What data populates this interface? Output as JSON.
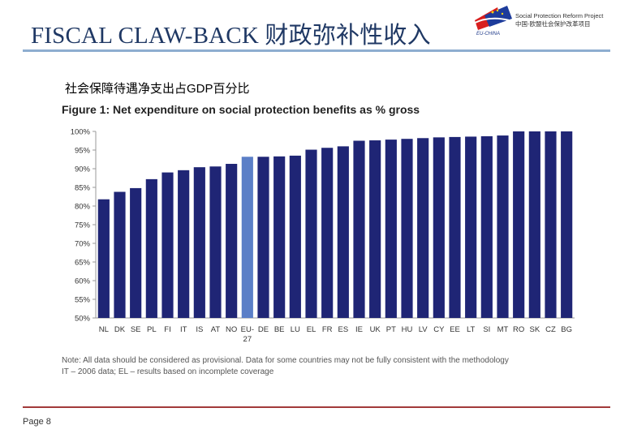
{
  "slide": {
    "title": "FISCAL CLAW-BACK 财政弥补性收入",
    "subtitle": "社会保障待遇净支出占GDP百分比",
    "page": "Page 8"
  },
  "logo": {
    "line1": "Social Protection Reform Project",
    "line2": "中国-欧盟社会保护改革项目",
    "sub": "EU-CHINA"
  },
  "figure": {
    "note_line1": "Note: All data should be considered as provisional. Data for some countries may not be fully consistent with the methodology",
    "note_line2": "IT – 2006 data; EL – results based on incomplete coverage"
  },
  "colors": {
    "bar": "#1f2575",
    "highlight": "#5b7fc7",
    "axis": "#999999",
    "title": "#1f3864"
  },
  "chart_data": {
    "type": "bar",
    "title": "Figure 1: Net expenditure on social protection benefits as % gross",
    "categories": [
      "NL",
      "DK",
      "SE",
      "PL",
      "FI",
      "IT",
      "IS",
      "AT",
      "NO",
      "EU-27",
      "DE",
      "BE",
      "LU",
      "EL",
      "FR",
      "ES",
      "IE",
      "UK",
      "PT",
      "HU",
      "LV",
      "CY",
      "EE",
      "LT",
      "SI",
      "MT",
      "RO",
      "SK",
      "CZ",
      "BG"
    ],
    "values": [
      81.8,
      83.8,
      84.8,
      87.2,
      89.0,
      89.6,
      90.4,
      90.6,
      91.3,
      93.2,
      93.2,
      93.3,
      93.5,
      95.1,
      95.6,
      96.0,
      97.5,
      97.6,
      97.8,
      98.0,
      98.2,
      98.4,
      98.5,
      98.6,
      98.7,
      98.9,
      100,
      100,
      100,
      100
    ],
    "highlight": [
      "EU-27"
    ],
    "ylim": [
      50,
      100
    ],
    "yticks": [
      "50%",
      "55%",
      "60%",
      "65%",
      "70%",
      "75%",
      "80%",
      "85%",
      "90%",
      "95%",
      "100%"
    ],
    "xlabel": "",
    "ylabel": ""
  }
}
